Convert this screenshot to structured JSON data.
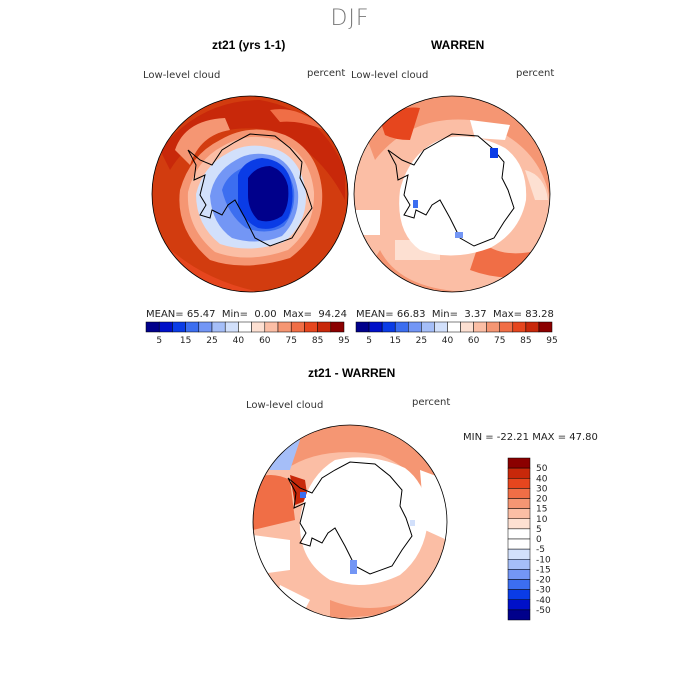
{
  "figure": {
    "title": "DJF",
    "panel1": {
      "title": "zt21 (yrs 1-1)",
      "field_label": "Low-level cloud",
      "units": "percent",
      "stats": {
        "mean_label": "MEAN=",
        "mean": "65.47",
        "min_label": "Min=",
        "min": "0.00",
        "max_label": "Max=",
        "max": "94.24"
      }
    },
    "panel2": {
      "title": "WARREN",
      "field_label": "Low-level cloud",
      "units": "percent",
      "stats": {
        "mean_label": "MEAN=",
        "mean": "66.83",
        "min_label": "Min=",
        "min": "3.37",
        "max_label": "Max=",
        "max": "83.28"
      }
    },
    "panel3": {
      "title": "zt21 - WARREN",
      "field_label": "Low-level cloud",
      "units": "percent",
      "minmax": "MIN = -22.21 MAX =  47.80"
    }
  },
  "chart_data": [
    {
      "type": "heatmap",
      "title": "zt21 (yrs 1-1)",
      "subtitle": "Low-level cloud",
      "units": "percent",
      "projection": "south polar stereographic",
      "stats": {
        "mean": 65.47,
        "min": 0.0,
        "max": 94.24
      },
      "colorbar": {
        "levels": [
          5,
          15,
          25,
          40,
          60,
          75,
          85,
          95
        ],
        "colors": [
          "#00008b",
          "#0010c8",
          "#0a3ce6",
          "#3c6ef0",
          "#7396f5",
          "#a5bef8",
          "#d2e0fb",
          "#ffffff",
          "#fde0d2",
          "#fbbea5",
          "#f59673",
          "#f06e46",
          "#e6461e",
          "#c8280a",
          "#8b0000"
        ]
      }
    },
    {
      "type": "heatmap",
      "title": "WARREN",
      "subtitle": "Low-level cloud",
      "units": "percent",
      "projection": "south polar stereographic",
      "stats": {
        "mean": 66.83,
        "min": 3.37,
        "max": 83.28
      },
      "colorbar": {
        "levels": [
          5,
          15,
          25,
          40,
          60,
          75,
          85,
          95
        ],
        "colors": [
          "#00008b",
          "#0010c8",
          "#0a3ce6",
          "#3c6ef0",
          "#7396f5",
          "#a5bef8",
          "#d2e0fb",
          "#ffffff",
          "#fde0d2",
          "#fbbea5",
          "#f59673",
          "#f06e46",
          "#e6461e",
          "#c8280a",
          "#8b0000"
        ]
      }
    },
    {
      "type": "heatmap",
      "title": "zt21 - WARREN",
      "subtitle": "Low-level cloud",
      "units": "percent",
      "projection": "south polar stereographic",
      "stats": {
        "min": -22.21,
        "max": 47.8
      },
      "colorbar": {
        "orientation": "vertical",
        "levels": [
          50,
          40,
          30,
          20,
          15,
          10,
          5,
          0,
          -5,
          -10,
          -15,
          -20,
          -30,
          -40,
          -50
        ],
        "colors": [
          "#8b0000",
          "#c8280a",
          "#e6461e",
          "#f06e46",
          "#f59673",
          "#fbbea5",
          "#fde0d2",
          "#ffffff",
          "#ffffff",
          "#d2e0fb",
          "#a5bef8",
          "#7396f5",
          "#3c6ef0",
          "#0a3ce6",
          "#0010c8",
          "#00008b"
        ]
      }
    }
  ]
}
